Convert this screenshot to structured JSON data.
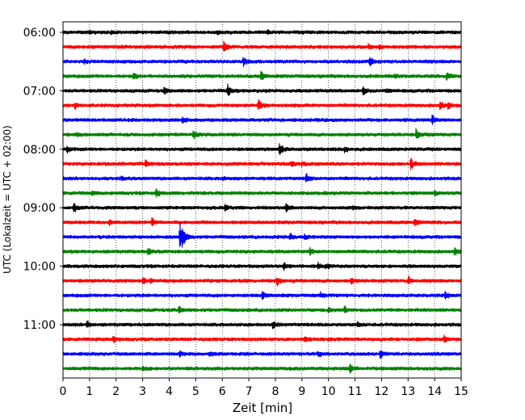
{
  "chart_data": {
    "type": "line",
    "subtype": "helicorder",
    "xlabel": "Zeit  [min]",
    "ylabel": "UTC (Lokalzeit = UTC + 02:00)",
    "xlim": [
      0,
      15
    ],
    "x_ticks": [
      "0",
      "1",
      "2",
      "3",
      "4",
      "5",
      "6",
      "7",
      "8",
      "9",
      "10",
      "11",
      "12",
      "13",
      "14",
      "15"
    ],
    "grid": "vertical dotted at each minute",
    "row_minutes": 15,
    "trace_colors": [
      "#000000",
      "#ff0000",
      "#0000ff",
      "#008000"
    ],
    "hour_labels": [
      "06:00",
      "07:00",
      "08:00",
      "09:00",
      "10:00",
      "11:00"
    ],
    "rows": [
      {
        "start": "06:00",
        "color": "#000000",
        "events": [
          {
            "t": 1.0,
            "amp": 0.25
          },
          {
            "t": 1.8,
            "amp": 0.25
          },
          {
            "t": 5.8,
            "amp": 0.3
          },
          {
            "t": 7.7,
            "amp": 0.25
          },
          {
            "t": 9.0,
            "amp": 0.2
          }
        ]
      },
      {
        "start": "06:15",
        "color": "#ff0000",
        "events": [
          {
            "t": 6.05,
            "amp": 1.1
          },
          {
            "t": 11.5,
            "amp": 0.45
          },
          {
            "t": 11.9,
            "amp": 0.35
          }
        ]
      },
      {
        "start": "06:30",
        "color": "#0000ff",
        "events": [
          {
            "t": 0.8,
            "amp": 0.35
          },
          {
            "t": 6.8,
            "amp": 0.9
          },
          {
            "t": 11.55,
            "amp": 0.8
          }
        ]
      },
      {
        "start": "06:45",
        "color": "#008000",
        "events": [
          {
            "t": 2.65,
            "amp": 0.7
          },
          {
            "t": 7.45,
            "amp": 0.9
          },
          {
            "t": 12.5,
            "amp": 0.3
          },
          {
            "t": 14.45,
            "amp": 0.95
          }
        ]
      },
      {
        "start": "07:00",
        "color": "#000000",
        "events": [
          {
            "t": 3.8,
            "amp": 0.65
          },
          {
            "t": 6.2,
            "amp": 1.1
          },
          {
            "t": 11.3,
            "amp": 0.95
          },
          {
            "t": 12.2,
            "amp": 0.3
          }
        ]
      },
      {
        "start": "07:15",
        "color": "#ff0000",
        "events": [
          {
            "t": 0.45,
            "amp": 0.6
          },
          {
            "t": 7.35,
            "amp": 1.1
          },
          {
            "t": 14.2,
            "amp": 0.8
          },
          {
            "t": 14.5,
            "amp": 0.5
          }
        ]
      },
      {
        "start": "07:30",
        "color": "#0000ff",
        "events": [
          {
            "t": 4.5,
            "amp": 0.8
          },
          {
            "t": 13.9,
            "amp": 1.0
          }
        ]
      },
      {
        "start": "07:45",
        "color": "#008000",
        "events": [
          {
            "t": 0.5,
            "amp": 0.2
          },
          {
            "t": 4.9,
            "amp": 0.9
          },
          {
            "t": 13.3,
            "amp": 0.95
          }
        ]
      },
      {
        "start": "08:00",
        "color": "#000000",
        "events": [
          {
            "t": 0.15,
            "amp": 0.5
          },
          {
            "t": 8.15,
            "amp": 1.1
          },
          {
            "t": 10.6,
            "amp": 0.45
          }
        ]
      },
      {
        "start": "08:15",
        "color": "#ff0000",
        "events": [
          {
            "t": 3.1,
            "amp": 0.7
          },
          {
            "t": 8.6,
            "amp": 0.55
          },
          {
            "t": 9.0,
            "amp": 0.4
          },
          {
            "t": 13.1,
            "amp": 1.1
          }
        ]
      },
      {
        "start": "08:30",
        "color": "#0000ff",
        "events": [
          {
            "t": 2.2,
            "amp": 0.3
          },
          {
            "t": 6.0,
            "amp": 0.3
          },
          {
            "t": 9.15,
            "amp": 0.8
          }
        ]
      },
      {
        "start": "08:45",
        "color": "#008000",
        "events": [
          {
            "t": 1.1,
            "amp": 0.3
          },
          {
            "t": 3.5,
            "amp": 0.75
          },
          {
            "t": 14.0,
            "amp": 0.4
          }
        ]
      },
      {
        "start": "09:00",
        "color": "#000000",
        "events": [
          {
            "t": 0.4,
            "amp": 0.85
          },
          {
            "t": 6.1,
            "amp": 0.6
          },
          {
            "t": 8.4,
            "amp": 0.95
          },
          {
            "t": 10.9,
            "amp": 0.3
          }
        ]
      },
      {
        "start": "09:15",
        "color": "#ff0000",
        "events": [
          {
            "t": 1.75,
            "amp": 0.6
          },
          {
            "t": 3.35,
            "amp": 0.9
          },
          {
            "t": 13.25,
            "amp": 0.8
          }
        ]
      },
      {
        "start": "09:30",
        "color": "#0000ff",
        "events": [
          {
            "t": 4.4,
            "amp": 2.6
          },
          {
            "t": 4.5,
            "amp": 1.6
          },
          {
            "t": 8.55,
            "amp": 0.6
          },
          {
            "t": 9.1,
            "amp": 0.45
          }
        ]
      },
      {
        "start": "09:45",
        "color": "#008000",
        "events": [
          {
            "t": 3.2,
            "amp": 0.6
          },
          {
            "t": 9.3,
            "amp": 0.55
          },
          {
            "t": 14.75,
            "amp": 0.7
          }
        ]
      },
      {
        "start": "10:00",
        "color": "#000000",
        "events": [
          {
            "t": 8.3,
            "amp": 0.75
          },
          {
            "t": 9.6,
            "amp": 0.5
          },
          {
            "t": 9.9,
            "amp": 0.45
          }
        ]
      },
      {
        "start": "10:15",
        "color": "#ff0000",
        "events": [
          {
            "t": 3.0,
            "amp": 0.65
          },
          {
            "t": 3.3,
            "amp": 0.4
          },
          {
            "t": 8.05,
            "amp": 0.85
          },
          {
            "t": 10.85,
            "amp": 0.55
          },
          {
            "t": 13.0,
            "amp": 0.7
          }
        ]
      },
      {
        "start": "10:30",
        "color": "#0000ff",
        "events": [
          {
            "t": 7.5,
            "amp": 0.7
          },
          {
            "t": 9.7,
            "amp": 0.45
          },
          {
            "t": 14.4,
            "amp": 0.85
          }
        ]
      },
      {
        "start": "10:45",
        "color": "#008000",
        "events": [
          {
            "t": 4.35,
            "amp": 0.7
          },
          {
            "t": 10.6,
            "amp": 0.65
          },
          {
            "t": 10.0,
            "amp": 0.35
          }
        ]
      },
      {
        "start": "11:00",
        "color": "#000000",
        "events": [
          {
            "t": 0.9,
            "amp": 0.65
          },
          {
            "t": 7.9,
            "amp": 0.6
          },
          {
            "t": 11.1,
            "amp": 0.35
          }
        ]
      },
      {
        "start": "11:15",
        "color": "#ff0000",
        "events": [
          {
            "t": 1.9,
            "amp": 0.6
          },
          {
            "t": 9.1,
            "amp": 0.75
          },
          {
            "t": 14.35,
            "amp": 0.75
          }
        ]
      },
      {
        "start": "11:30",
        "color": "#0000ff",
        "events": [
          {
            "t": 4.4,
            "amp": 0.45
          },
          {
            "t": 5.5,
            "amp": 0.4
          },
          {
            "t": 9.6,
            "amp": 0.5
          },
          {
            "t": 11.95,
            "amp": 0.8
          }
        ]
      },
      {
        "start": "11:45",
        "color": "#008000",
        "events": [
          {
            "t": 10.8,
            "amp": 0.8
          },
          {
            "t": 3.0,
            "amp": 0.3
          }
        ]
      }
    ]
  }
}
